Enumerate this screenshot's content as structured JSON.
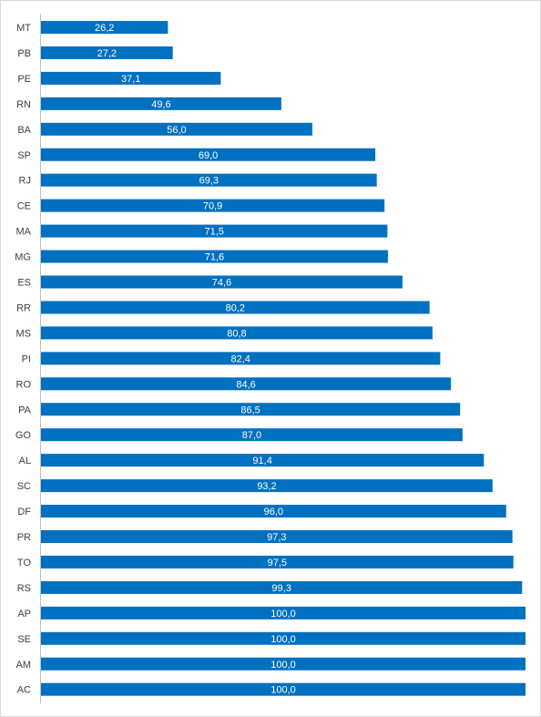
{
  "chart_data": {
    "type": "bar",
    "orientation": "horizontal",
    "categories": [
      "MT",
      "PB",
      "PE",
      "RN",
      "BA",
      "SP",
      "RJ",
      "CE",
      "MA",
      "MG",
      "ES",
      "RR",
      "MS",
      "PI",
      "RO",
      "PA",
      "GO",
      "AL",
      "SC",
      "DF",
      "PR",
      "TO",
      "RS",
      "AP",
      "SE",
      "AM",
      "AC"
    ],
    "values": [
      26.2,
      27.2,
      37.1,
      49.6,
      56.0,
      69.0,
      69.3,
      70.9,
      71.5,
      71.6,
      74.6,
      80.2,
      80.8,
      82.4,
      84.6,
      86.5,
      87.0,
      91.4,
      93.2,
      96.0,
      97.3,
      97.5,
      99.3,
      100.0,
      100.0,
      100.0,
      100.0
    ],
    "value_labels": [
      "26,2",
      "27,2",
      "37,1",
      "49,6",
      "56,0",
      "69,0",
      "69,3",
      "70,9",
      "71,5",
      "71,6",
      "74,6",
      "80,2",
      "80,8",
      "82,4",
      "84,6",
      "86,5",
      "87,0",
      "91,4",
      "93,2",
      "96,0",
      "97,3",
      "97,5",
      "99,3",
      "100,0",
      "100,0",
      "100,0",
      "100,0"
    ],
    "xlim": [
      0,
      100
    ],
    "grid": false,
    "bar_color": "#0070c0",
    "title": "",
    "xlabel": "",
    "ylabel": ""
  }
}
